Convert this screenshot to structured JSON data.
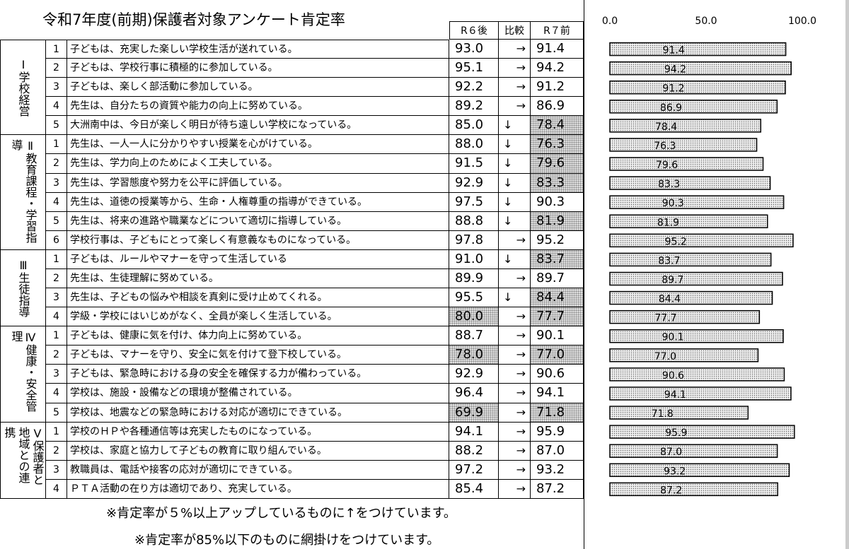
{
  "title": "令和7年度(前期)保護者対象アンケート肯定率",
  "columns": {
    "r6": "R６後",
    "cmp": "比較",
    "r7": "R７前"
  },
  "groups": [
    {
      "label": "Ⅰ学校経営",
      "rows": [
        {
          "no": "1",
          "text": "子どもは、充実した楽しい学校生活が送れている。",
          "r6": "93.0",
          "cmp": "→",
          "r7": "91.4",
          "r6_shade": false,
          "r7_shade": false
        },
        {
          "no": "2",
          "text": "子どもは、学校行事に積極的に参加している。",
          "r6": "95.1",
          "cmp": "→",
          "r7": "94.2",
          "r6_shade": false,
          "r7_shade": false
        },
        {
          "no": "3",
          "text": "子どもは、楽しく部活動に参加している。",
          "r6": "92.2",
          "cmp": "→",
          "r7": "91.2",
          "r6_shade": false,
          "r7_shade": false
        },
        {
          "no": "4",
          "text": "先生は、自分たちの資質や能力の向上に努めている。",
          "r6": "89.2",
          "cmp": "→",
          "r7": "86.9",
          "r6_shade": false,
          "r7_shade": false
        },
        {
          "no": "5",
          "text": "大洲南中は、今日が楽しく明日が待ち遠しい学校になっている。",
          "r6": "85.0",
          "cmp": "↓",
          "r7": "78.4",
          "r6_shade": false,
          "r7_shade": true
        }
      ]
    },
    {
      "label": "Ⅱ教育課程・学習指導",
      "rows": [
        {
          "no": "1",
          "text": "先生は、一人一人に分かりやすい授業を心がけている。",
          "r6": "88.0",
          "cmp": "↓",
          "r7": "76.3",
          "r6_shade": false,
          "r7_shade": true
        },
        {
          "no": "2",
          "text": "先生は、学力向上のためによく工夫している。",
          "r6": "91.5",
          "cmp": "↓",
          "r7": "79.6",
          "r6_shade": false,
          "r7_shade": true
        },
        {
          "no": "3",
          "text": "先生は、学習態度や努力を公平に評価している。",
          "r6": "92.9",
          "cmp": "↓",
          "r7": "83.3",
          "r6_shade": false,
          "r7_shade": true
        },
        {
          "no": "4",
          "text": "先生は、道徳の授業等から、生命・人権尊重の指導ができている。",
          "r6": "97.5",
          "cmp": "↓",
          "r7": "90.3",
          "r6_shade": false,
          "r7_shade": false
        },
        {
          "no": "5",
          "text": "先生は、将来の進路や職業などについて適切に指導している。",
          "r6": "88.8",
          "cmp": "↓",
          "r7": "81.9",
          "r6_shade": false,
          "r7_shade": true
        },
        {
          "no": "6",
          "text": "学校行事は、子どもにとって楽しく有意義なものになっている。",
          "r6": "97.8",
          "cmp": "→",
          "r7": "95.2",
          "r6_shade": false,
          "r7_shade": false
        }
      ]
    },
    {
      "label": "Ⅲ生徒指導",
      "rows": [
        {
          "no": "1",
          "text": "子どもは、ルールやマナーを守って生活している",
          "r6": "91.0",
          "cmp": "↓",
          "r7": "83.7",
          "r6_shade": false,
          "r7_shade": true
        },
        {
          "no": "2",
          "text": "先生は、生徒理解に努めている。",
          "r6": "89.9",
          "cmp": "→",
          "r7": "89.7",
          "r6_shade": false,
          "r7_shade": false
        },
        {
          "no": "3",
          "text": "先生は、子どもの悩みや相談を真剣に受け止めてくれる。",
          "r6": "95.5",
          "cmp": "↓",
          "r7": "84.4",
          "r6_shade": false,
          "r7_shade": true
        },
        {
          "no": "4",
          "text": "学級・学校にはいじめがなく、全員が楽しく生活している。",
          "r6": "80.0",
          "cmp": "→",
          "r7": "77.7",
          "r6_shade": true,
          "r7_shade": true
        }
      ]
    },
    {
      "label": "Ⅳ健康・安全管理",
      "rows": [
        {
          "no": "1",
          "text": "子どもは、健康に気を付け、体力向上に努めている。",
          "r6": "88.7",
          "cmp": "→",
          "r7": "90.1",
          "r6_shade": false,
          "r7_shade": false
        },
        {
          "no": "2",
          "text": "子どもは、マナーを守り、安全に気を付けて登下校している。",
          "r6": "78.0",
          "cmp": "→",
          "r7": "77.0",
          "r6_shade": true,
          "r7_shade": true
        },
        {
          "no": "3",
          "text": "子どもは、緊急時における身の安全を確保する力が備わっている。",
          "r6": "92.9",
          "cmp": "→",
          "r7": "90.6",
          "r6_shade": false,
          "r7_shade": false
        },
        {
          "no": "4",
          "text": "学校は、施設・設備などの環境が整備されている。",
          "r6": "96.4",
          "cmp": "→",
          "r7": "94.1",
          "r6_shade": false,
          "r7_shade": false
        },
        {
          "no": "5",
          "text": "学校は、地震などの緊急時における対応が適切にできている。",
          "r6": "69.9",
          "cmp": "→",
          "r7": "71.8",
          "r6_shade": true,
          "r7_shade": true
        }
      ]
    },
    {
      "label": "Ⅴ保護者と地域との連携",
      "rows": [
        {
          "no": "1",
          "text": "学校のＨＰや各種通信等は充実したものになっている。",
          "r6": "94.1",
          "cmp": "→",
          "r7": "95.9",
          "r6_shade": false,
          "r7_shade": false
        },
        {
          "no": "2",
          "text": "学校は、家庭と協力して子どもの教育に取り組んでいる。",
          "r6": "88.2",
          "cmp": "→",
          "r7": "87.0",
          "r6_shade": false,
          "r7_shade": false
        },
        {
          "no": "3",
          "text": "教職員は、電話や接客の応対が適切にできている。",
          "r6": "97.2",
          "cmp": "→",
          "r7": "93.2",
          "r6_shade": false,
          "r7_shade": false
        },
        {
          "no": "4",
          "text": "ＰＴＡ活動の在り方は適切であり、充実している。",
          "r6": "85.4",
          "cmp": "→",
          "r7": "87.2",
          "r6_shade": false,
          "r7_shade": false
        }
      ]
    }
  ],
  "chart": {
    "xlim": [
      0,
      100
    ],
    "xticks": [
      {
        "value": 0,
        "label": "0.0"
      },
      {
        "value": 50,
        "label": "50.0"
      },
      {
        "value": 100,
        "label": "100.0"
      }
    ]
  },
  "notes": [
    "※肯定率が５%以上アップしているものに↑をつけています。",
    "※肯定率が85%以下のものに網掛けをつけています。"
  ]
}
